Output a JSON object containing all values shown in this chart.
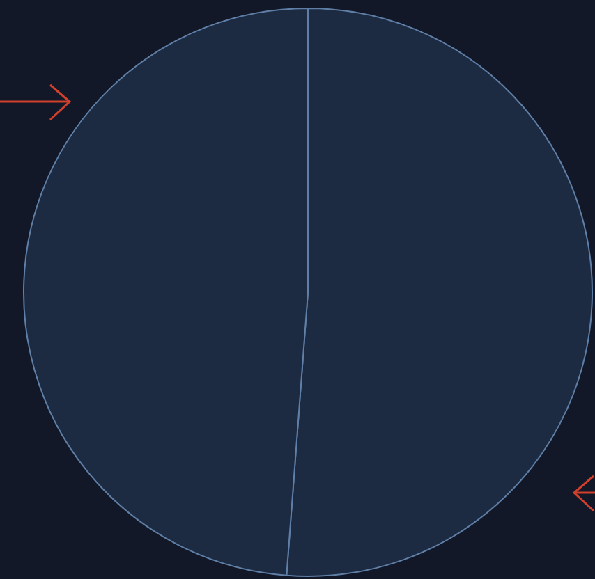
{
  "chart_data": {
    "type": "pie",
    "categories": [
      null,
      null
    ],
    "values": [
      51.2,
      48.8
    ],
    "colors": [
      "#1c2a42",
      "#1c2a42"
    ]
  }
}
